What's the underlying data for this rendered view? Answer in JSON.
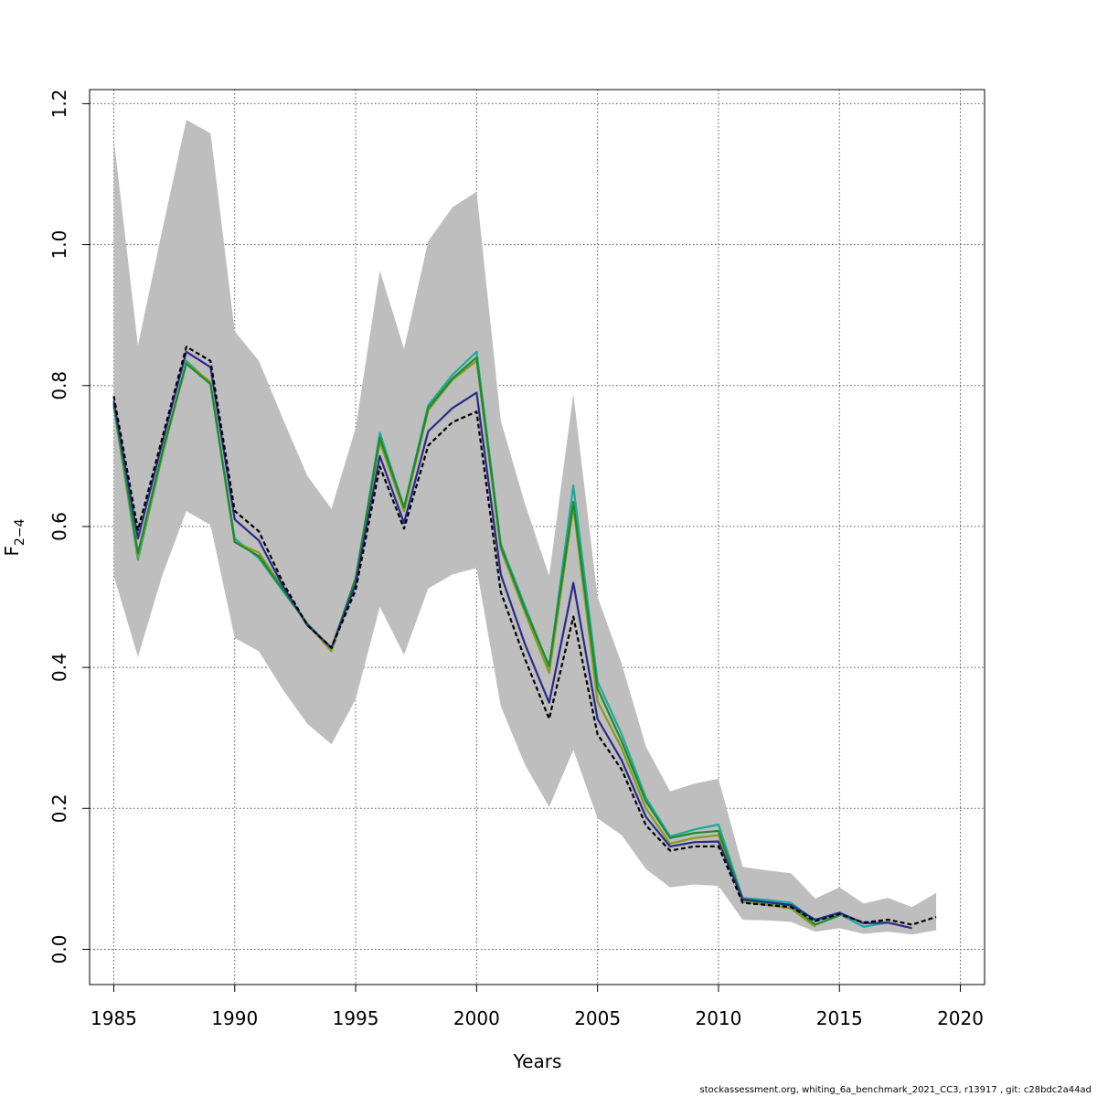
{
  "chart_data": {
    "type": "line",
    "title": "",
    "xlabel": "Years",
    "ylabel_base": "F",
    "ylabel_sub": "2−4",
    "xlim": [
      1984,
      2021
    ],
    "ylim": [
      -0.05,
      1.22
    ],
    "xticks": [
      "1985",
      "1990",
      "1995",
      "2000",
      "2005",
      "2010",
      "2015",
      "2020"
    ],
    "yticks": [
      "0.0",
      "0.2",
      "0.4",
      "0.6",
      "0.8",
      "1.0",
      "1.2"
    ],
    "grid": true,
    "band": {
      "color": "#bebebe",
      "x": [
        1985,
        1986,
        1987,
        1988,
        1989,
        1990,
        1991,
        1992,
        1993,
        1994,
        1995,
        1996,
        1997,
        1998,
        1999,
        2000,
        2001,
        2002,
        2003,
        2004,
        2005,
        2006,
        2007,
        2008,
        2009,
        2010,
        2011,
        2012,
        2013,
        2014,
        2015,
        2016,
        2017,
        2018,
        2019
      ],
      "lower": [
        0.53,
        0.415,
        0.53,
        0.622,
        0.602,
        0.442,
        0.423,
        0.368,
        0.32,
        0.291,
        0.355,
        0.486,
        0.418,
        0.512,
        0.532,
        0.541,
        0.345,
        0.262,
        0.202,
        0.283,
        0.186,
        0.162,
        0.114,
        0.088,
        0.092,
        0.09,
        0.042,
        0.041,
        0.039,
        0.025,
        0.03,
        0.022,
        0.025,
        0.021,
        0.027
      ],
      "upper": [
        1.15,
        0.857,
        1.02,
        1.177,
        1.158,
        0.877,
        0.835,
        0.752,
        0.672,
        0.625,
        0.74,
        0.963,
        0.852,
        1.005,
        1.053,
        1.075,
        0.75,
        0.632,
        0.53,
        0.788,
        0.5,
        0.405,
        0.288,
        0.224,
        0.235,
        0.242,
        0.117,
        0.112,
        0.108,
        0.072,
        0.088,
        0.065,
        0.073,
        0.06,
        0.08
      ]
    },
    "series": [
      {
        "color": "#1fa99a",
        "dashed": false,
        "x": [
          1985,
          1986,
          1987,
          1988,
          1989,
          1990,
          1991,
          1992,
          1993,
          1994,
          1995,
          1996,
          1997,
          1998,
          1999,
          2000,
          2001,
          2002,
          2003,
          2004,
          2005,
          2006,
          2007,
          2008,
          2009,
          2010,
          2011,
          2012,
          2013,
          2014,
          2015,
          2016,
          2017
        ],
        "values": [
          0.77,
          0.553,
          0.7,
          0.835,
          0.803,
          0.583,
          0.555,
          0.508,
          0.462,
          0.427,
          0.523,
          0.733,
          0.627,
          0.772,
          0.815,
          0.848,
          0.575,
          0.487,
          0.4,
          0.658,
          0.38,
          0.305,
          0.215,
          0.16,
          0.17,
          0.177,
          0.073,
          0.07,
          0.066,
          0.04,
          0.05,
          0.032,
          0.038
        ]
      },
      {
        "color": "#8a9a1f",
        "dashed": false,
        "x": [
          1985,
          1986,
          1987,
          1988,
          1989,
          1990,
          1991,
          1992,
          1993,
          1994,
          1995,
          1996,
          1997,
          1998,
          1999,
          2000,
          2001,
          2002,
          2003,
          2004,
          2005,
          2006,
          2007,
          2008,
          2009,
          2010,
          2011,
          2012,
          2013,
          2014
        ],
        "values": [
          0.772,
          0.557,
          0.702,
          0.832,
          0.805,
          0.578,
          0.563,
          0.512,
          0.462,
          0.423,
          0.525,
          0.72,
          0.622,
          0.765,
          0.808,
          0.835,
          0.568,
          0.478,
          0.392,
          0.628,
          0.352,
          0.285,
          0.2,
          0.15,
          0.158,
          0.162,
          0.067,
          0.063,
          0.058,
          0.032
        ]
      },
      {
        "color": "#1b8b2d",
        "dashed": false,
        "x": [
          1985,
          1986,
          1987,
          1988,
          1989,
          1990,
          1991,
          1992,
          1993,
          1994,
          1995,
          1996,
          1997,
          1998,
          1999,
          2000,
          2001,
          2002,
          2003,
          2004,
          2005,
          2006,
          2007,
          2008,
          2009,
          2010,
          2011,
          2012,
          2013,
          2014,
          2015
        ],
        "values": [
          0.775,
          0.562,
          0.705,
          0.831,
          0.802,
          0.578,
          0.558,
          0.51,
          0.462,
          0.427,
          0.527,
          0.726,
          0.627,
          0.768,
          0.81,
          0.84,
          0.572,
          0.483,
          0.402,
          0.635,
          0.37,
          0.295,
          0.21,
          0.158,
          0.165,
          0.168,
          0.07,
          0.066,
          0.062,
          0.035,
          0.048
        ]
      },
      {
        "color": "#2a2a8a",
        "dashed": false,
        "x": [
          1985,
          1986,
          1987,
          1988,
          1989,
          1990,
          1991,
          1992,
          1993,
          1994,
          1995,
          1996,
          1997,
          1998,
          1999,
          2000,
          2001,
          2002,
          2003,
          2004,
          2005,
          2006,
          2007,
          2008,
          2009,
          2010,
          2011,
          2012,
          2013,
          2014,
          2015,
          2016,
          2017,
          2018
        ],
        "values": [
          0.778,
          0.583,
          0.718,
          0.848,
          0.826,
          0.61,
          0.58,
          0.515,
          0.46,
          0.428,
          0.518,
          0.7,
          0.605,
          0.735,
          0.768,
          0.79,
          0.532,
          0.433,
          0.35,
          0.52,
          0.327,
          0.268,
          0.188,
          0.146,
          0.152,
          0.153,
          0.071,
          0.067,
          0.063,
          0.042,
          0.052,
          0.037,
          0.038,
          0.03
        ]
      },
      {
        "color": "#000000",
        "dashed": true,
        "x": [
          1985,
          1986,
          1987,
          1988,
          1989,
          1990,
          1991,
          1992,
          1993,
          1994,
          1995,
          1996,
          1997,
          1998,
          1999,
          2000,
          2001,
          2002,
          2003,
          2004,
          2005,
          2006,
          2007,
          2008,
          2009,
          2010,
          2011,
          2012,
          2013,
          2014,
          2015,
          2016,
          2017,
          2018,
          2019
        ],
        "values": [
          0.785,
          0.595,
          0.725,
          0.855,
          0.835,
          0.622,
          0.593,
          0.52,
          0.46,
          0.428,
          0.51,
          0.685,
          0.597,
          0.715,
          0.748,
          0.763,
          0.507,
          0.412,
          0.327,
          0.472,
          0.305,
          0.255,
          0.176,
          0.14,
          0.146,
          0.146,
          0.066,
          0.063,
          0.06,
          0.04,
          0.05,
          0.038,
          0.042,
          0.035,
          0.046
        ]
      }
    ]
  },
  "footer": "stockassessment.org, whiting_6a_benchmark_2021_CC3, r13917 , git: c28bdc2a44ad"
}
